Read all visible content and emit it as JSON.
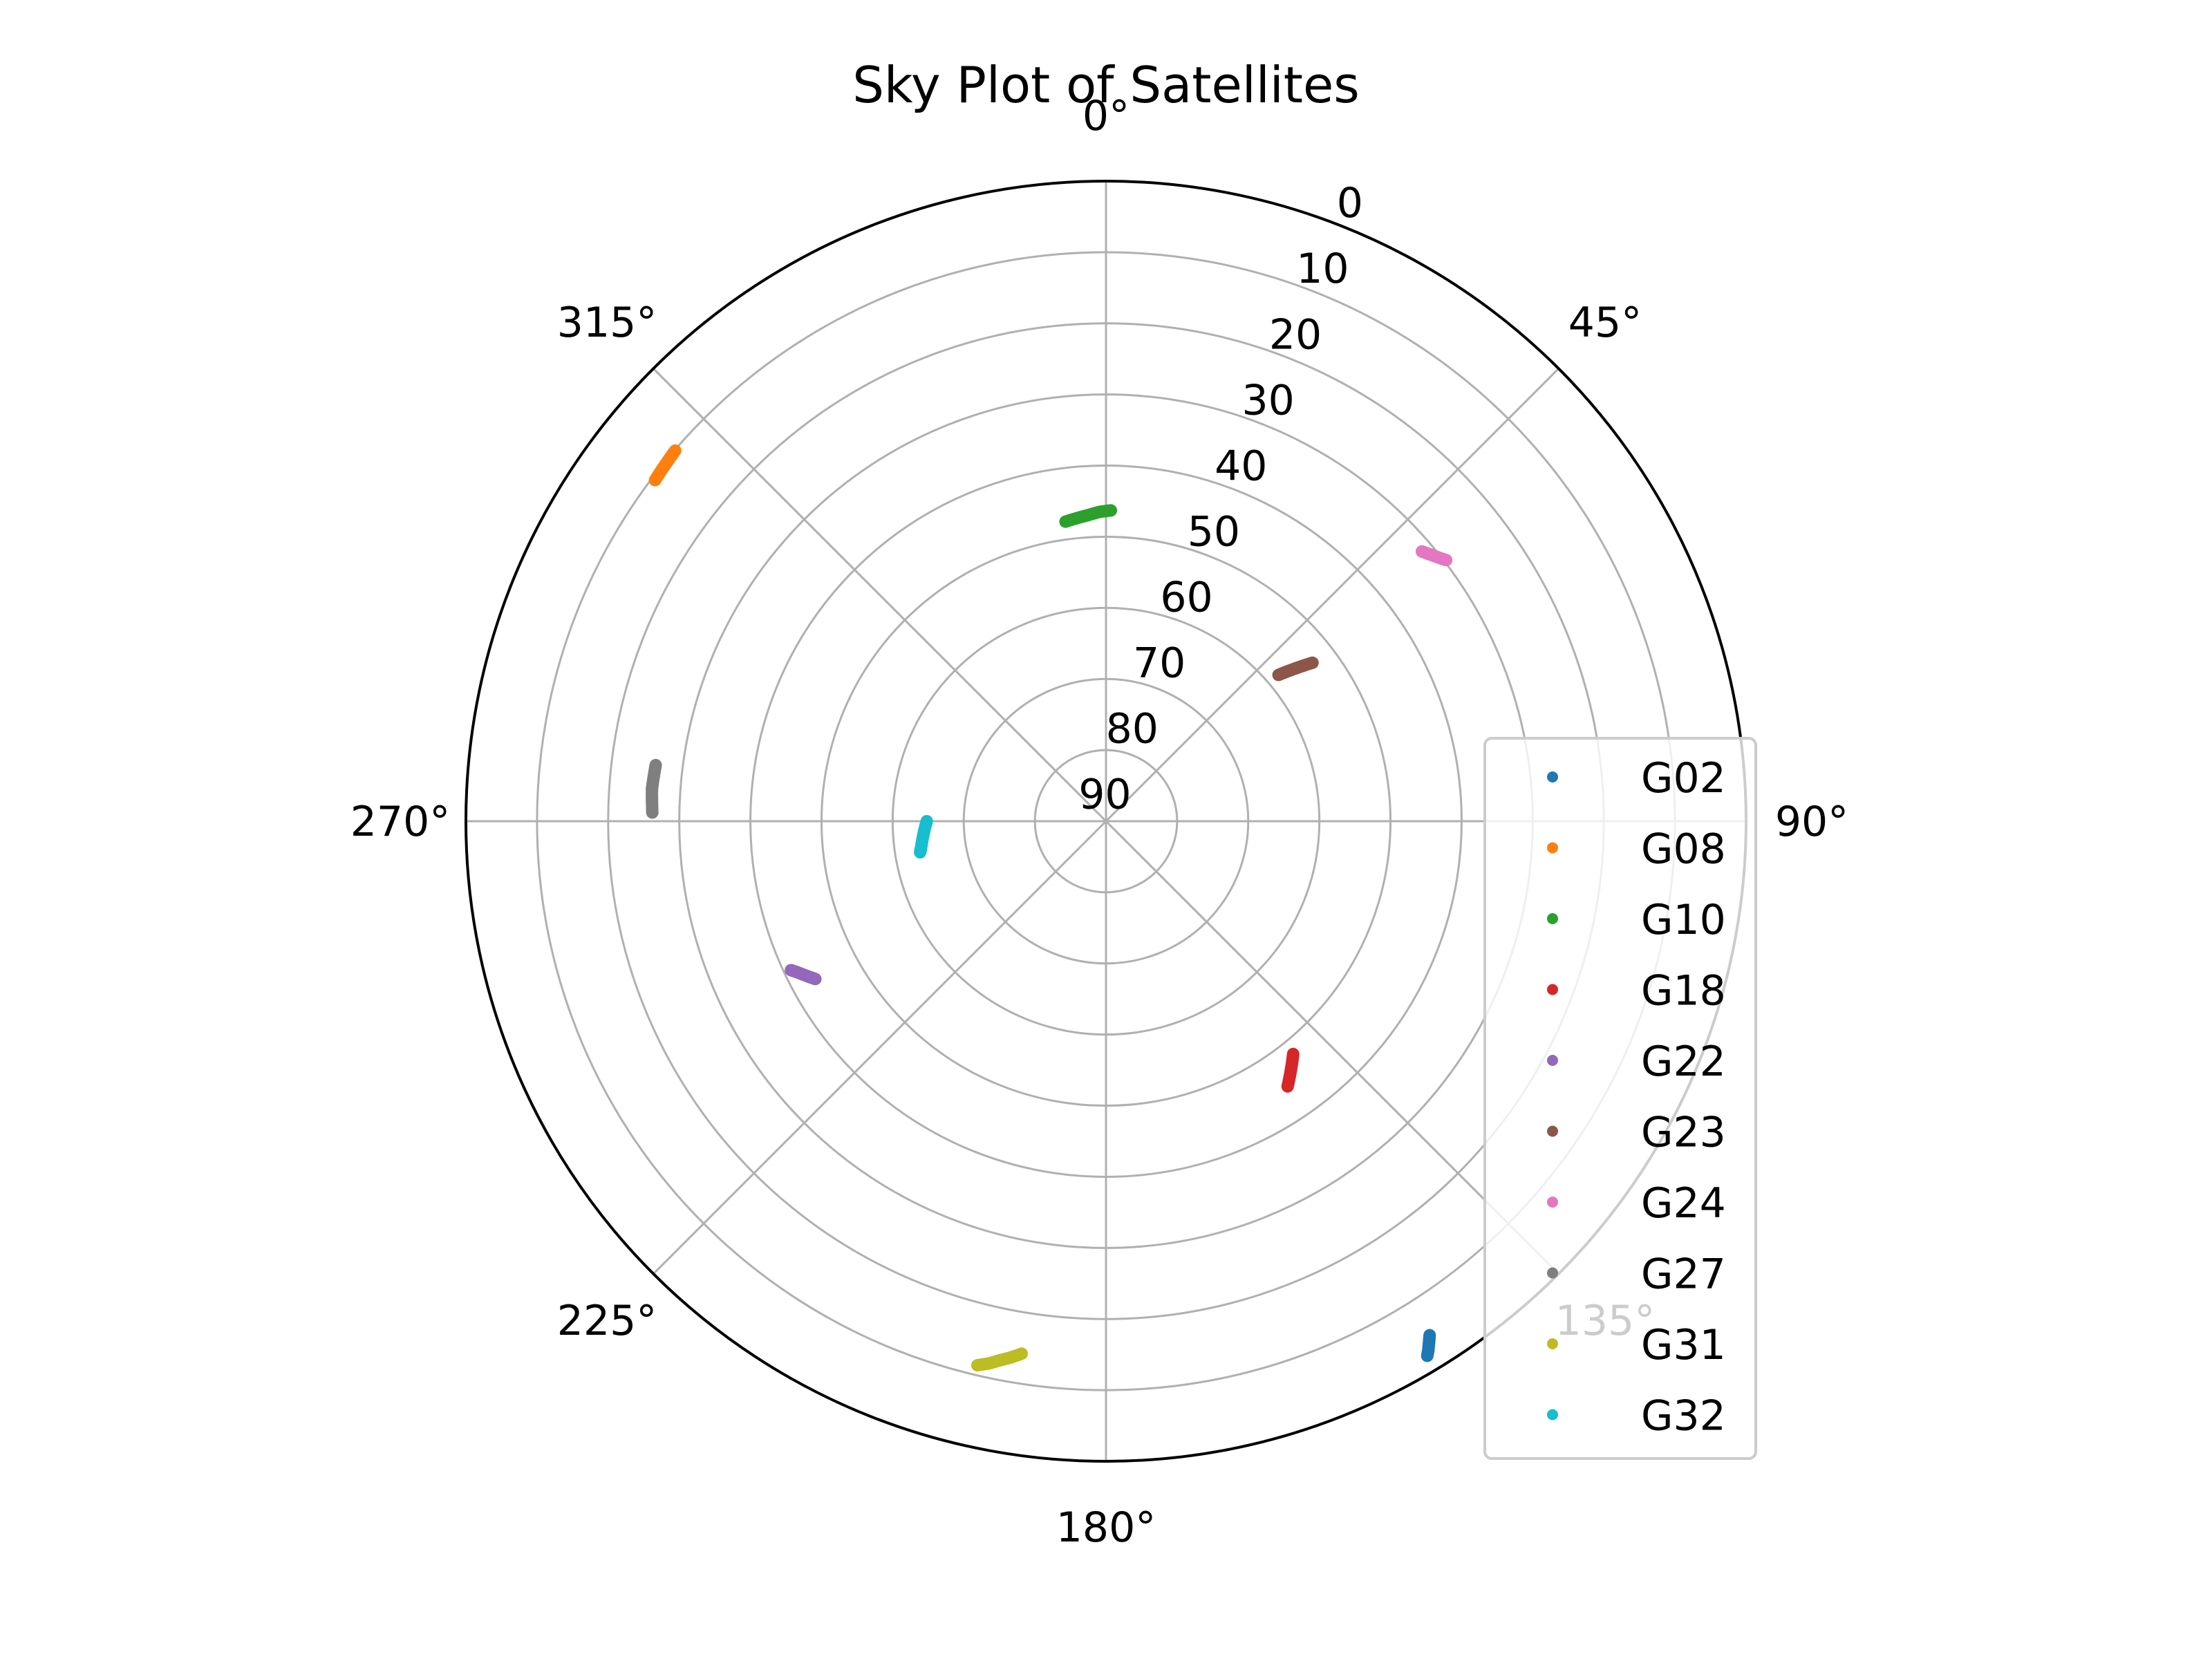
{
  "chart_data": {
    "type": "scatter",
    "projection": "polar",
    "title": "Sky Plot of Satellites",
    "theta_direction": "clockwise",
    "theta_zero": "top",
    "theta_ticks": [
      "0°",
      "45°",
      "90°",
      "135°",
      "180°",
      "225°",
      "270°",
      "315°"
    ],
    "theta_tick_values": [
      0,
      45,
      90,
      135,
      180,
      225,
      270,
      315
    ],
    "r_ticks": [
      0,
      10,
      20,
      30,
      40,
      50,
      60,
      70,
      80,
      90
    ],
    "r_axis": "elevation",
    "r_inverted": true,
    "rlim": [
      0,
      90
    ],
    "grid": true,
    "legend_position": "right",
    "series": [
      {
        "name": "G02",
        "color": "#1f77b4",
        "azimuth": [
          147.8,
          148.1,
          148.4,
          148.7,
          149.0
        ],
        "elevation": [
          4.6,
          4.0,
          3.4,
          2.8,
          2.3
        ]
      },
      {
        "name": "G08",
        "color": "#ff7f0e",
        "azimuth": [
          307.1,
          308.0,
          308.9,
          309.8,
          310.7
        ],
        "elevation": [
          10.5,
          10.4,
          10.3,
          10.2,
          10.1
        ]
      },
      {
        "name": "G10",
        "color": "#2ca02c",
        "azimuth": [
          352.3,
          354.5,
          356.6,
          358.8,
          0.9
        ],
        "elevation": [
          47.5,
          47.2,
          46.9,
          46.5,
          46.3
        ]
      },
      {
        "name": "G18",
        "color": "#d62728",
        "azimuth": [
          141.2,
          142.3,
          143.4,
          144.5,
          145.6
        ],
        "elevation": [
          48.0,
          47.2,
          46.4,
          45.6,
          44.8
        ]
      },
      {
        "name": "G22",
        "color": "#9467bd",
        "azimuth": [
          241.5,
          242.3,
          243.1,
          243.9,
          244.7
        ],
        "elevation": [
          43.5,
          42.9,
          42.3,
          41.7,
          41.0
        ]
      },
      {
        "name": "G23",
        "color": "#8c564b",
        "azimuth": [
          49.7,
          50.4,
          51.1,
          51.8,
          52.5
        ],
        "elevation": [
          58.2,
          57.0,
          55.8,
          54.6,
          53.4
        ]
      },
      {
        "name": "G24",
        "color": "#e377c2",
        "azimuth": [
          49.5,
          50.2,
          51.0,
          51.8,
          52.5
        ],
        "elevation": [
          31.6,
          31.2,
          30.7,
          30.2,
          29.7
        ]
      },
      {
        "name": "G27",
        "color": "#7f7f7f",
        "azimuth": [
          277.1,
          275.6,
          274.1,
          272.6,
          271.1
        ],
        "elevation": [
          26.2,
          26.1,
          26.0,
          26.1,
          26.2
        ]
      },
      {
        "name": "G31",
        "color": "#bcbd22",
        "azimuth": [
          193.3,
          192.2,
          191.2,
          190.1,
          189.0
        ],
        "elevation": [
          11.4,
          12.0,
          12.7,
          13.4,
          14.2
        ]
      },
      {
        "name": "G32",
        "color": "#17becf",
        "azimuth": [
          260.5,
          261.6,
          263.8,
          266.9,
          270.0
        ],
        "elevation": [
          63.5,
          63.7,
          64.0,
          64.4,
          64.8
        ]
      }
    ]
  }
}
